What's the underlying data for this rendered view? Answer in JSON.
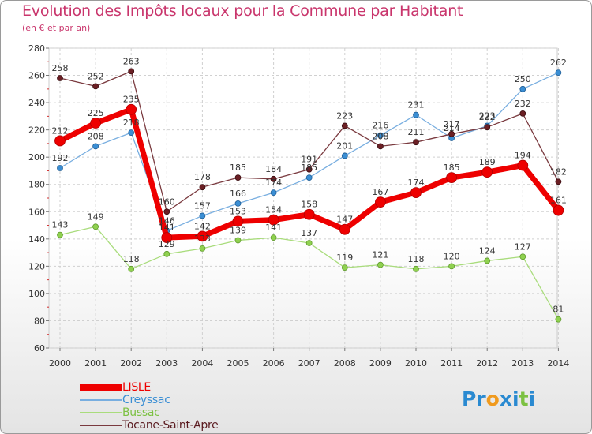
{
  "header": {
    "title": "Evolution des Impôts locaux pour la Commune par Habitant",
    "subtitle": "(en € et par an)"
  },
  "brand": {
    "letters": [
      "P",
      "r",
      "o",
      "x",
      "i",
      "t",
      "i"
    ],
    "colors": [
      "#2a8ad1",
      "#2a8ad1",
      "#f09a1e",
      "#2a8ad1",
      "#2a8ad1",
      "#7cc142",
      "#2a8ad1"
    ]
  },
  "chart_data": {
    "type": "line",
    "x": [
      "2000",
      "2001",
      "2002",
      "2003",
      "2004",
      "2005",
      "2006",
      "2007",
      "2008",
      "2009",
      "2010",
      "2011",
      "2012",
      "2013",
      "2014"
    ],
    "ylim": [
      60,
      280
    ],
    "yticks": [
      "60",
      "80",
      "100",
      "120",
      "140",
      "160",
      "180",
      "200",
      "220",
      "240",
      "260",
      "280"
    ],
    "grid": true,
    "legend_position": "bottom-left",
    "series": [
      {
        "name": "LISLE",
        "color": "#ee0000",
        "values": [
          212,
          225,
          235,
          141,
          142,
          153,
          154,
          158,
          147,
          167,
          174,
          185,
          189,
          194,
          161
        ],
        "labels": [
          "212",
          "225",
          "235",
          "141",
          "142",
          "153",
          "154",
          "158",
          "147",
          "167",
          "174",
          "185",
          "189",
          "194",
          "161"
        ]
      },
      {
        "name": "Creyssac",
        "color": "#3a8ed4",
        "values": [
          192,
          208,
          218,
          146,
          157,
          166,
          174,
          185,
          201,
          216,
          231,
          214,
          223,
          250,
          262
        ],
        "labels": [
          "192",
          "208",
          "218",
          "146",
          "157",
          "166",
          "174",
          "185",
          "201",
          "216",
          "231",
          "214",
          "223",
          "250",
          "262"
        ]
      },
      {
        "name": "Bussac",
        "color": "#8fd14f",
        "values": [
          143,
          149,
          118,
          129,
          133,
          139,
          141,
          137,
          119,
          121,
          118,
          120,
          124,
          127,
          81
        ],
        "labels": [
          "143",
          "149",
          "118",
          "129",
          "133",
          "139",
          "141",
          "137",
          "119",
          "121",
          "118",
          "120",
          "124",
          "127",
          "81"
        ]
      },
      {
        "name": "Tocane-Saint-Apre",
        "color": "#6b1f24",
        "values": [
          258,
          252,
          263,
          160,
          178,
          185,
          184,
          191,
          223,
          208,
          211,
          217,
          222,
          232,
          182
        ],
        "labels": [
          "258",
          "252",
          "263",
          "160",
          "178",
          "185",
          "184",
          "191",
          "223",
          "208",
          "211",
          "217",
          "222",
          "232",
          "182"
        ]
      }
    ]
  }
}
